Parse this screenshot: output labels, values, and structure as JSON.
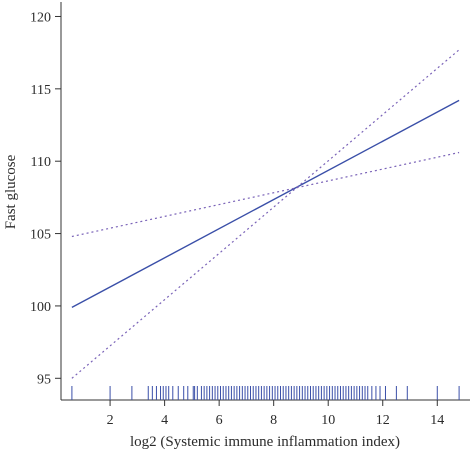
{
  "chart_data": {
    "type": "line",
    "title": "",
    "xlabel": "log2 (Systemic immune inflammation index)",
    "ylabel": "Fast glucose",
    "xlim": [
      0.2,
      15.2
    ],
    "ylim": [
      93.5,
      121
    ],
    "x_ticks": [
      2,
      4,
      6,
      8,
      10,
      12,
      14
    ],
    "y_ticks": [
      95,
      100,
      105,
      110,
      115,
      120
    ],
    "grid": false,
    "legend": "none",
    "series": [
      {
        "style": "solid",
        "color": "#3a4fa8",
        "x": [
          0.6,
          14.8
        ],
        "y": [
          99.9,
          114.2
        ]
      },
      {
        "style": "dotted",
        "color": "#7a63b8",
        "x": [
          0.6,
          14.8
        ],
        "y": [
          104.8,
          110.6
        ]
      },
      {
        "style": "dotted",
        "color": "#7a63b8",
        "x": [
          0.6,
          14.8
        ],
        "y": [
          95.0,
          117.7
        ]
      }
    ],
    "rug": {
      "color": "#3a4fa8",
      "x": [
        0.6,
        2.0,
        2.8,
        3.4,
        3.55,
        3.7,
        3.85,
        3.95,
        4.05,
        4.15,
        4.3,
        4.5,
        4.7,
        4.85,
        5.05,
        5.1,
        5.2,
        5.35,
        5.45,
        5.55,
        5.65,
        5.75,
        5.85,
        5.95,
        6.05,
        6.15,
        6.25,
        6.35,
        6.45,
        6.55,
        6.65,
        6.75,
        6.85,
        6.95,
        7.05,
        7.15,
        7.25,
        7.35,
        7.45,
        7.55,
        7.65,
        7.75,
        7.85,
        7.95,
        8.05,
        8.15,
        8.25,
        8.35,
        8.45,
        8.55,
        8.65,
        8.75,
        8.85,
        8.95,
        9.05,
        9.15,
        9.25,
        9.35,
        9.45,
        9.55,
        9.65,
        9.75,
        9.85,
        9.95,
        10.05,
        10.15,
        10.25,
        10.35,
        10.45,
        10.55,
        10.65,
        10.75,
        10.85,
        10.95,
        11.05,
        11.15,
        11.25,
        11.35,
        11.45,
        11.6,
        11.75,
        11.9,
        12.1,
        12.5,
        12.9,
        14.0,
        14.8
      ]
    }
  }
}
